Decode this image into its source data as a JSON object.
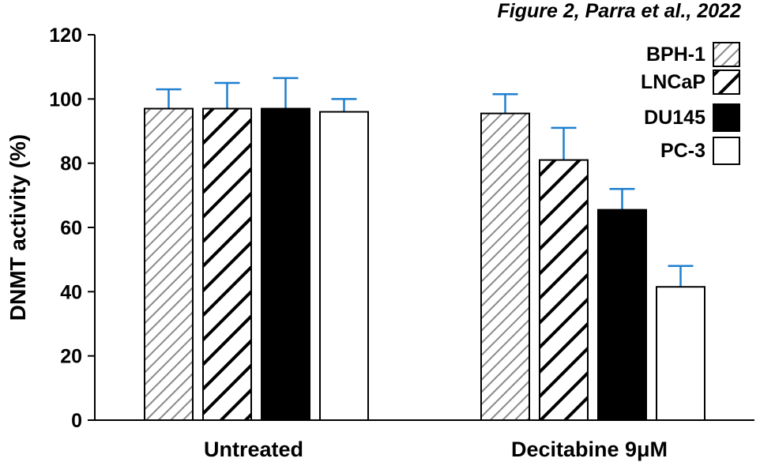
{
  "figure_caption": "Figure 2, Parra et al., 2022",
  "chart_data": {
    "type": "bar",
    "title": "",
    "xlabel": "",
    "ylabel": "DNMT activity (%)",
    "ylim": [
      0,
      120
    ],
    "yticks": [
      0,
      20,
      40,
      60,
      80,
      100,
      120
    ],
    "grid": false,
    "legend_position": "top-right",
    "categories": [
      "Untreated",
      "Decitabine 9μM"
    ],
    "series": [
      {
        "name": "BPH-1",
        "pattern": "fine-diagonal-hatch",
        "values": [
          97,
          95.5
        ],
        "errors": [
          6,
          6
        ]
      },
      {
        "name": "LNCaP",
        "pattern": "wide-diagonal-stripes",
        "values": [
          97,
          81
        ],
        "errors": [
          8,
          10
        ]
      },
      {
        "name": "DU145",
        "pattern": "solid-black",
        "values": [
          97,
          65.5
        ],
        "errors": [
          9.5,
          6.5
        ]
      },
      {
        "name": "PC-3",
        "pattern": "white",
        "values": [
          96,
          41.5
        ],
        "errors": [
          4,
          6.5
        ]
      }
    ],
    "error_bar_color": "#1e7fcf",
    "bar_edge_color": "#000000"
  }
}
